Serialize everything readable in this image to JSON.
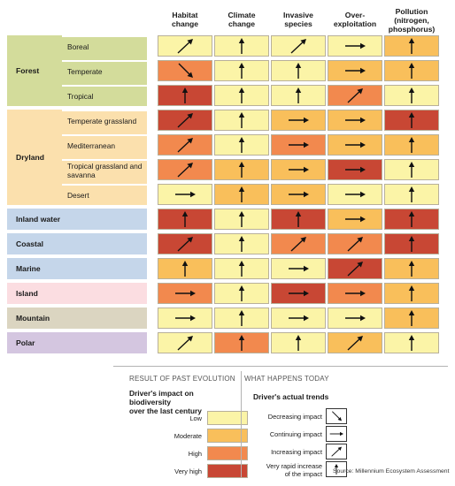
{
  "columns": [
    "Habitat change",
    "Climate change",
    "Invasive species",
    "Over- exploitation",
    "Pollution (nitrogen, phosphorus)"
  ],
  "column_lines": [
    [
      "Habitat",
      "change"
    ],
    [
      "Climate",
      "change"
    ],
    [
      "Invasive",
      "species"
    ],
    [
      "Over-",
      "exploitation"
    ],
    [
      "Pollution",
      "(nitrogen,",
      "phosphorus)"
    ]
  ],
  "colors": {
    "low": "#fbf4a7",
    "moderate": "#f9bf5b",
    "high": "#f2894e",
    "very_high": "#c84734",
    "forest": "#d3dc9b",
    "dryland": "#fbe0ad",
    "water": "#c5d6ea",
    "island": "#fbdde1",
    "mountain": "#dbd5c1",
    "polar": "#d4c6e0"
  },
  "groups": [
    {
      "name": "Forest",
      "color_key": "forest",
      "rows": [
        "Boreal",
        "Temperate",
        "Tropical"
      ]
    },
    {
      "name": "Dryland",
      "color_key": "dryland",
      "rows": [
        "Temperate grassland",
        "Mediterranean",
        "Tropical grassland and savanna",
        "Desert"
      ]
    },
    {
      "name": "Inland water",
      "color_key": "water",
      "rows": [
        ""
      ]
    },
    {
      "name": "Coastal",
      "color_key": "water",
      "rows": [
        ""
      ]
    },
    {
      "name": "Marine",
      "color_key": "water",
      "rows": [
        ""
      ]
    },
    {
      "name": "Island",
      "color_key": "island",
      "rows": [
        ""
      ]
    },
    {
      "name": "Mountain",
      "color_key": "mountain",
      "rows": [
        ""
      ]
    },
    {
      "name": "Polar",
      "color_key": "polar",
      "rows": [
        ""
      ]
    }
  ],
  "impact_trends": [
    [
      [
        "low",
        "up-right"
      ],
      [
        "low",
        "up"
      ],
      [
        "low",
        "up-right"
      ],
      [
        "low",
        "right"
      ],
      [
        "moderate",
        "up"
      ]
    ],
    [
      [
        "high",
        "down-right"
      ],
      [
        "low",
        "up"
      ],
      [
        "low",
        "up"
      ],
      [
        "moderate",
        "right"
      ],
      [
        "moderate",
        "up"
      ]
    ],
    [
      [
        "very_high",
        "up"
      ],
      [
        "low",
        "up"
      ],
      [
        "low",
        "up"
      ],
      [
        "high",
        "up-right"
      ],
      [
        "low",
        "up"
      ]
    ],
    [
      [
        "very_high",
        "up-right"
      ],
      [
        "low",
        "up"
      ],
      [
        "moderate",
        "right"
      ],
      [
        "moderate",
        "right"
      ],
      [
        "very_high",
        "up"
      ]
    ],
    [
      [
        "high",
        "up-right"
      ],
      [
        "low",
        "up"
      ],
      [
        "high",
        "right"
      ],
      [
        "moderate",
        "right"
      ],
      [
        "moderate",
        "up"
      ]
    ],
    [
      [
        "high",
        "up-right"
      ],
      [
        "moderate",
        "up"
      ],
      [
        "moderate",
        "right"
      ],
      [
        "very_high",
        "right"
      ],
      [
        "low",
        "up"
      ]
    ],
    [
      [
        "low",
        "right"
      ],
      [
        "moderate",
        "up"
      ],
      [
        "moderate",
        "right"
      ],
      [
        "low",
        "right"
      ],
      [
        "low",
        "up"
      ]
    ],
    [
      [
        "very_high",
        "up"
      ],
      [
        "low",
        "up"
      ],
      [
        "very_high",
        "up"
      ],
      [
        "moderate",
        "right"
      ],
      [
        "very_high",
        "up"
      ]
    ],
    [
      [
        "very_high",
        "up-right"
      ],
      [
        "low",
        "up"
      ],
      [
        "high",
        "up-right"
      ],
      [
        "high",
        "up-right"
      ],
      [
        "very_high",
        "up"
      ]
    ],
    [
      [
        "moderate",
        "up"
      ],
      [
        "low",
        "up"
      ],
      [
        "low",
        "right"
      ],
      [
        "very_high",
        "up-right"
      ],
      [
        "moderate",
        "up"
      ]
    ],
    [
      [
        "high",
        "right"
      ],
      [
        "low",
        "up"
      ],
      [
        "very_high",
        "right"
      ],
      [
        "high",
        "right"
      ],
      [
        "moderate",
        "up"
      ]
    ],
    [
      [
        "low",
        "right"
      ],
      [
        "low",
        "up"
      ],
      [
        "low",
        "right"
      ],
      [
        "low",
        "right"
      ],
      [
        "moderate",
        "up"
      ]
    ],
    [
      [
        "low",
        "up-right"
      ],
      [
        "high",
        "up"
      ],
      [
        "low",
        "up"
      ],
      [
        "moderate",
        "up-right"
      ],
      [
        "low",
        "up"
      ]
    ]
  ],
  "legend": {
    "left_title": "RESULT OF PAST EVOLUTION",
    "left_subtitle": "Driver's impact on biodiversity over the last century",
    "left_subtitle_lines": [
      "Driver's impact on biodiversity",
      "over the last century"
    ],
    "impact_levels": [
      {
        "label": "Low",
        "color_key": "low"
      },
      {
        "label": "Moderate",
        "color_key": "moderate"
      },
      {
        "label": "High",
        "color_key": "high"
      },
      {
        "label": "Very high",
        "color_key": "very_high"
      }
    ],
    "right_title": "WHAT HAPPENS TODAY",
    "right_subtitle": "Driver's actual trends",
    "trends": [
      {
        "label": "Decreasing impact",
        "icon": "down-right"
      },
      {
        "label": "Continuing impact",
        "icon": "right"
      },
      {
        "label": "Increasing impact",
        "icon": "up-right"
      },
      {
        "label": "Very rapid increase of the impact",
        "label_lines": [
          "Very rapid increase",
          "of the impact"
        ],
        "icon": "up"
      }
    ],
    "source": "Source: Millennium Ecosystem Assessment"
  }
}
